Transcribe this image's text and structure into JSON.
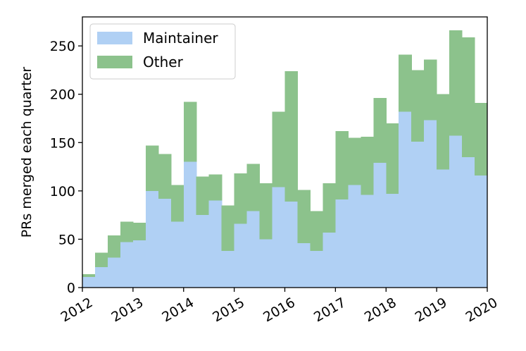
{
  "chart_data": {
    "type": "area",
    "stacked": true,
    "step": true,
    "title": "",
    "xlabel": "",
    "ylabel": "PRs merged each quarter",
    "xlim": [
      2012,
      2020
    ],
    "ylim": [
      0,
      280
    ],
    "x_ticks": [
      "2012",
      "2013",
      "2014",
      "2015",
      "2016",
      "2017",
      "2018",
      "2019",
      "2020"
    ],
    "y_ticks": [
      "0",
      "50",
      "100",
      "150",
      "200",
      "250"
    ],
    "grid": false,
    "legend_position": "top-left",
    "quarters": [
      "2012Q1",
      "2012Q2",
      "2012Q3",
      "2012Q4",
      "2013Q1",
      "2013Q2",
      "2013Q3",
      "2013Q4",
      "2014Q1",
      "2014Q2",
      "2014Q3",
      "2014Q4",
      "2015Q1",
      "2015Q2",
      "2015Q3",
      "2015Q4",
      "2016Q1",
      "2016Q2",
      "2016Q3",
      "2016Q4",
      "2017Q1",
      "2017Q2",
      "2017Q3",
      "2017Q4",
      "2018Q1",
      "2018Q2",
      "2018Q3",
      "2018Q4",
      "2019Q1",
      "2019Q2",
      "2019Q3",
      "2019Q4"
    ],
    "series": [
      {
        "name": "Maintainer",
        "color": "#b0d0f4",
        "values": [
          11,
          21,
          31,
          47,
          49,
          100,
          92,
          68,
          130,
          75,
          90,
          38,
          66,
          79,
          50,
          104,
          89,
          46,
          38,
          57,
          91,
          106,
          96,
          129,
          97,
          182,
          151,
          173,
          122,
          157,
          135,
          116
        ]
      },
      {
        "name": "Other",
        "color": "#8cc28c",
        "values": [
          3,
          15,
          23,
          21,
          18,
          47,
          46,
          38,
          62,
          40,
          27,
          47,
          52,
          49,
          58,
          78,
          135,
          55,
          41,
          51,
          71,
          49,
          60,
          67,
          73,
          59,
          74,
          63,
          78,
          109,
          124,
          75
        ]
      }
    ]
  }
}
